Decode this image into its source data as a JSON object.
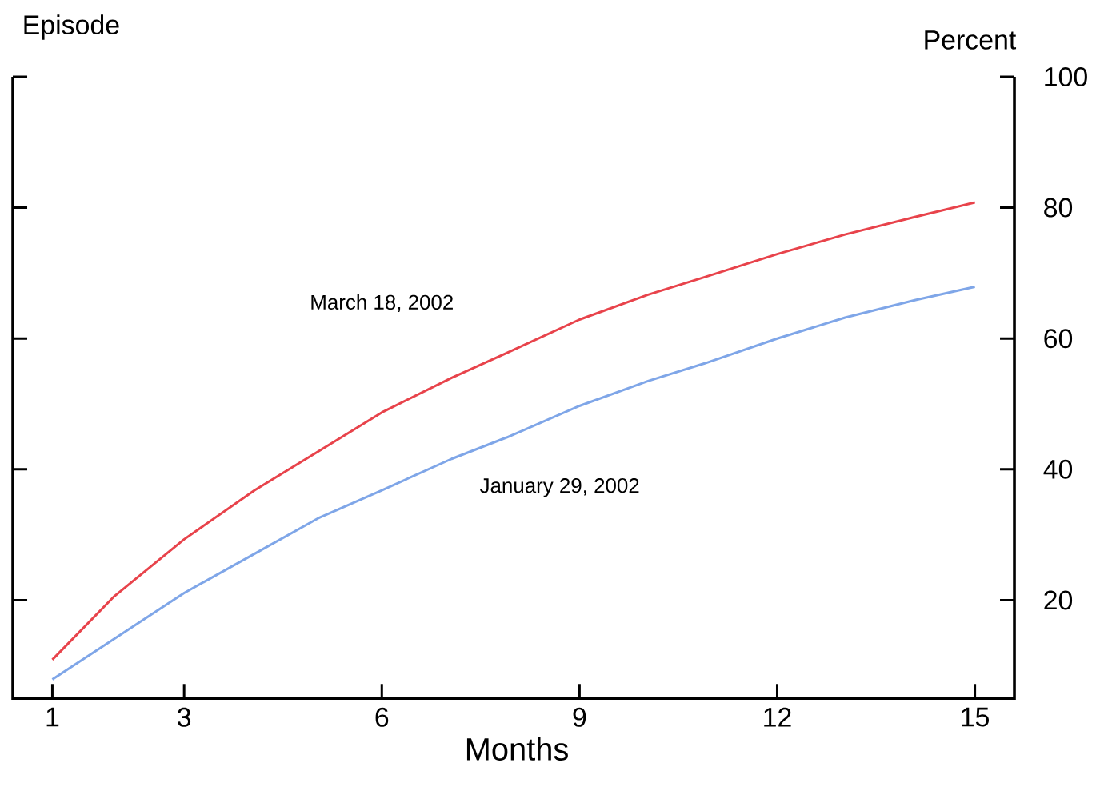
{
  "chart_data": {
    "type": "line",
    "xlabel": "Months",
    "ylabel": "Percent",
    "annotations": [
      "Episode"
    ],
    "xlim": [
      0.4,
      15.6
    ],
    "xticks": [
      1,
      3,
      6,
      9,
      12,
      15
    ],
    "ylim": [
      5,
      100
    ],
    "yticks": [
      20,
      40,
      60,
      80,
      100
    ],
    "x": [
      1,
      1.94,
      3,
      4.07,
      5.03,
      6,
      7.06,
      7.9,
      9,
      10.04,
      10.9,
      12,
      13.03,
      14.1,
      15
    ],
    "series": [
      {
        "name": "March 18, 2002",
        "color": "#e8434b",
        "values": [
          10.9,
          20.6,
          29.3,
          36.8,
          42.7,
          48.7,
          54.0,
          57.8,
          62.9,
          66.7,
          69.4,
          72.9,
          75.9,
          78.6,
          80.8
        ]
      },
      {
        "name": "January 29, 2002",
        "color": "#7fa6e8",
        "values": [
          7.9,
          14.1,
          21.1,
          27.1,
          32.5,
          36.8,
          41.6,
          44.9,
          49.7,
          53.5,
          56.2,
          60.0,
          63.2,
          65.9,
          67.9
        ]
      }
    ],
    "grid": false,
    "marker": "none",
    "line_style": "solid"
  }
}
